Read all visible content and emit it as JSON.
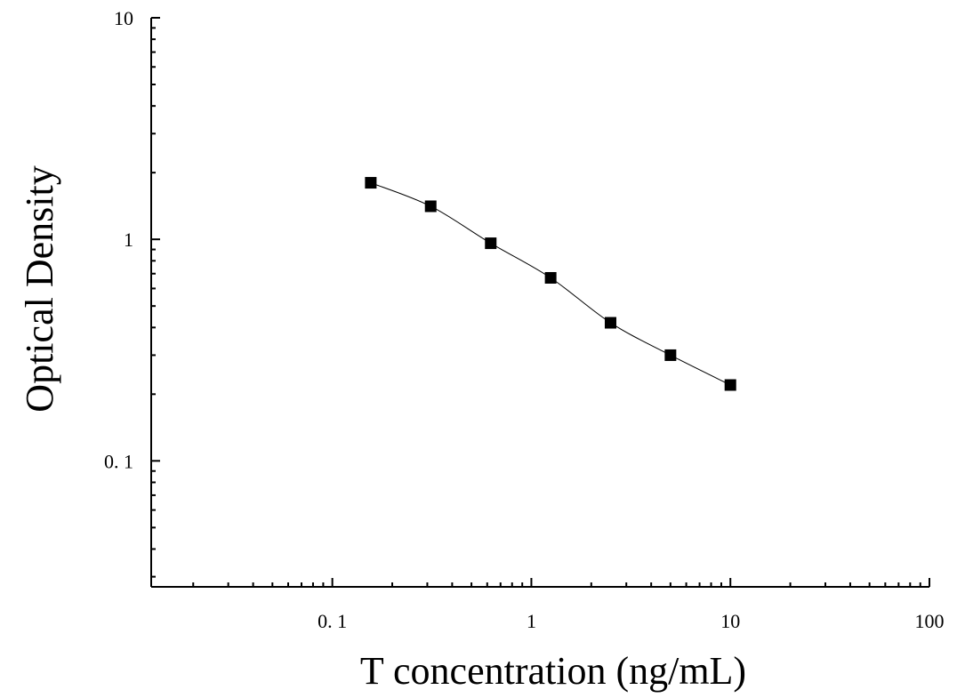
{
  "chart_data": {
    "type": "scatter",
    "xlabel": "T concentration (ng/mL)",
    "ylabel": "Optical Density",
    "x_scale": "log",
    "y_scale": "log",
    "xlim": [
      0.0123,
      100
    ],
    "ylim": [
      0.027,
      10
    ],
    "x_ticks": [
      0.1,
      1,
      10,
      100
    ],
    "x_tick_labels": [
      "0. 1",
      "1",
      "10",
      "100"
    ],
    "y_ticks": [
      0.1,
      1,
      10
    ],
    "y_tick_labels": [
      "0. 1",
      "1",
      "10"
    ],
    "grid": false,
    "legend": "none",
    "series": [
      {
        "marker": "square",
        "color": "#000000",
        "x": [
          0.156,
          0.312,
          0.625,
          1.25,
          2.5,
          5,
          10
        ],
        "y": [
          1.8,
          1.41,
          0.96,
          0.67,
          0.42,
          0.3,
          0.22
        ],
        "fit_curve": true
      }
    ]
  }
}
